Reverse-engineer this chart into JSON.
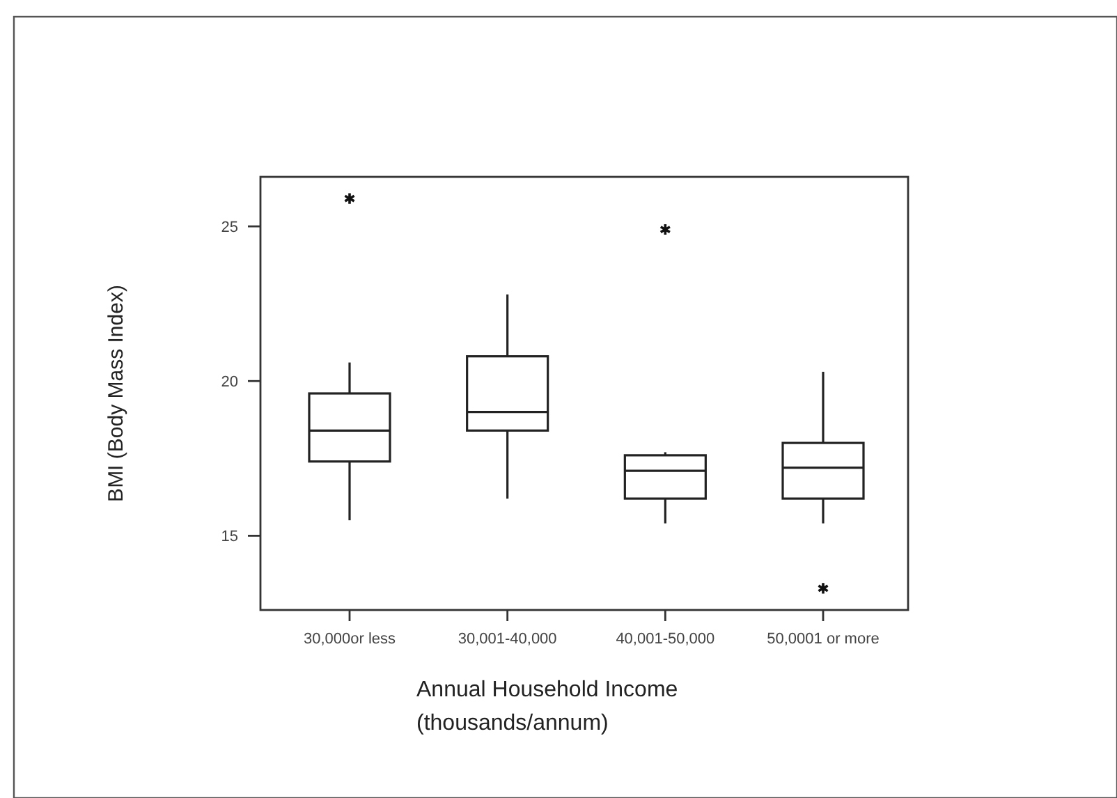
{
  "chart_data": {
    "type": "box",
    "xlabel": "Annual Household Income\n(thousands/annum)",
    "ylabel": "BMI (Body Mass Index)",
    "categories": [
      "30,000or less",
      "30,001-40,000",
      "40,001-50,000",
      "50,0001 or more"
    ],
    "boxes": [
      {
        "low": 15.5,
        "q1": 17.4,
        "median": 18.4,
        "q3": 19.6,
        "high": 20.6,
        "outliers": [
          25.9
        ]
      },
      {
        "low": 16.2,
        "q1": 18.4,
        "median": 19.0,
        "q3": 20.8,
        "high": 22.8
      },
      {
        "low": 15.4,
        "q1": 16.2,
        "median": 17.1,
        "q3": 17.6,
        "high": 17.7,
        "outliers": [
          24.9
        ]
      },
      {
        "low": 15.4,
        "q1": 16.2,
        "median": 17.2,
        "q3": 18.0,
        "high": 20.3,
        "outliers": [
          13.3
        ]
      }
    ],
    "ylim": [
      12.6,
      26.6
    ],
    "yticks": [
      15,
      20,
      25
    ],
    "marker": "star",
    "grid": false
  }
}
